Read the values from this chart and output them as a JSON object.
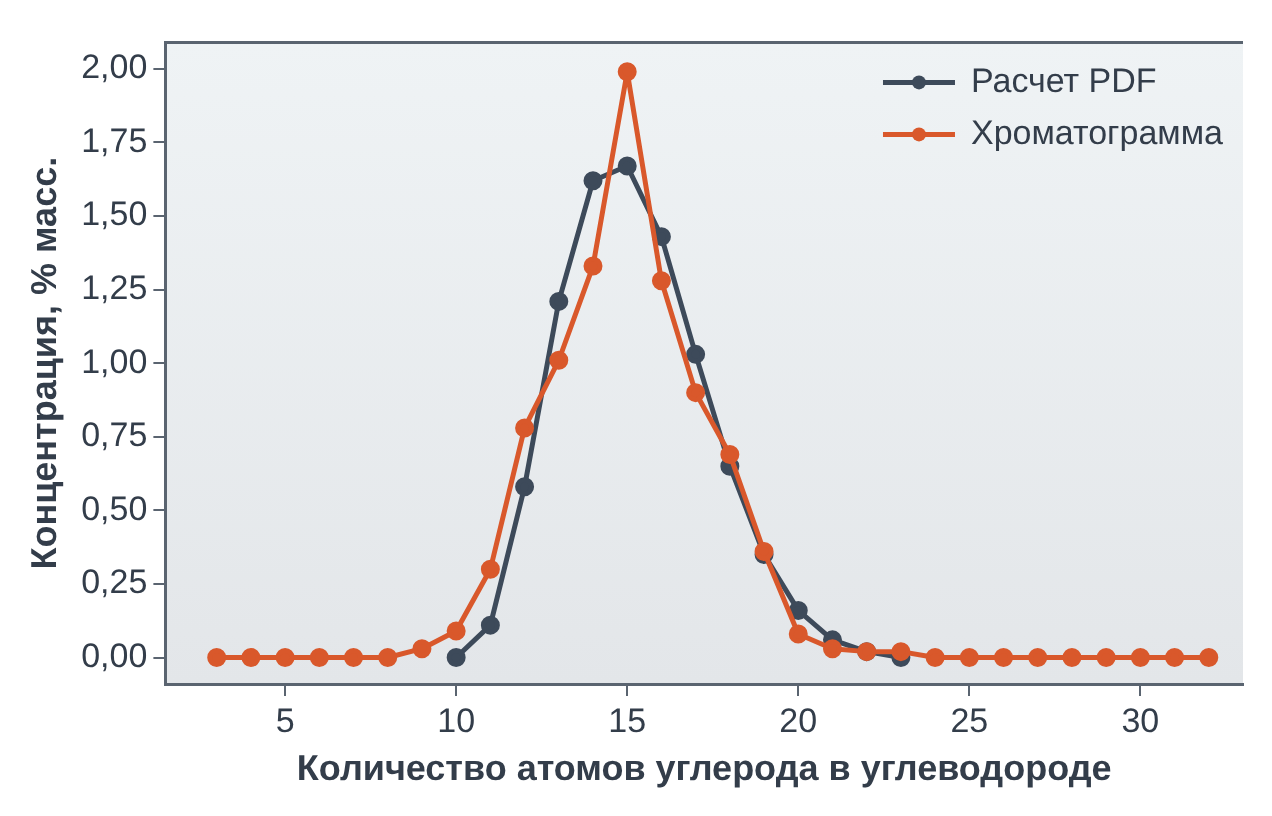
{
  "chart_data": {
    "type": "line",
    "xlabel": "Количество атомов углерода в углеводороде",
    "ylabel": "Концентрация, % масс.",
    "xlim": [
      1.5,
      33
    ],
    "xticks": [
      5,
      10,
      15,
      20,
      25,
      30
    ],
    "ylim": [
      -0.09,
      2.09
    ],
    "yticks": [
      {
        "value": 0,
        "label": "0,00"
      },
      {
        "value": 0.25,
        "label": "0,25"
      },
      {
        "value": 0.5,
        "label": "0,50"
      },
      {
        "value": 0.75,
        "label": "0,75"
      },
      {
        "value": 1,
        "label": "1,00"
      },
      {
        "value": 1.25,
        "label": "1,25"
      },
      {
        "value": 1.5,
        "label": "1,50"
      },
      {
        "value": 1.75,
        "label": "1,75"
      },
      {
        "value": 2,
        "label": "2,00"
      }
    ],
    "grid": false,
    "legend": "top right",
    "marker": "circle",
    "line_style": "solid",
    "series": [
      {
        "name": "Расчет PDF",
        "color": "#3d4a5a",
        "x": [
          10,
          11,
          12,
          13,
          14,
          15,
          16,
          17,
          18,
          19,
          20,
          21,
          22,
          23
        ],
        "values": [
          0,
          0.11,
          0.58,
          1.21,
          1.62,
          1.67,
          1.43,
          1.03,
          0.65,
          0.35,
          0.16,
          0.06,
          0.02,
          0
        ]
      },
      {
        "name": "Хроматограмма",
        "color": "#d9582b",
        "x": [
          3,
          4,
          5,
          6,
          7,
          8,
          9,
          10,
          11,
          12,
          13,
          14,
          15,
          16,
          17,
          18,
          19,
          20,
          21,
          22,
          23,
          24,
          25,
          26,
          27,
          28,
          29,
          30,
          31,
          32
        ],
        "values": [
          0,
          0,
          0,
          0,
          0,
          0,
          0.03,
          0.09,
          0.3,
          0.78,
          1.01,
          1.33,
          1.99,
          1.28,
          0.9,
          0.69,
          0.36,
          0.08,
          0.03,
          0.02,
          0.02,
          0,
          0,
          0,
          0,
          0,
          0,
          0,
          0,
          0
        ]
      }
    ]
  }
}
